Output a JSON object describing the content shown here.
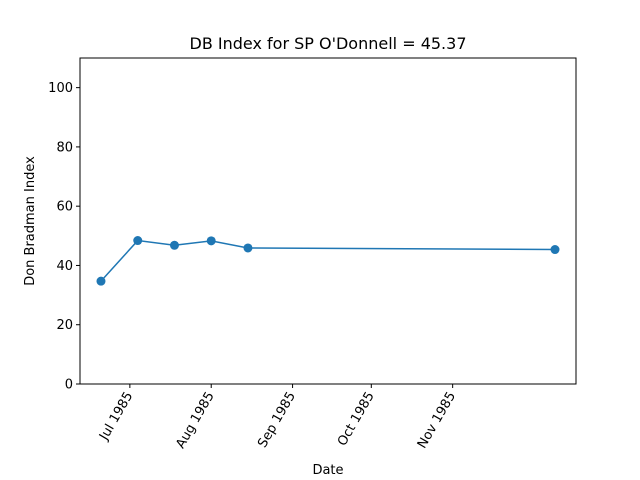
{
  "chart_data": {
    "type": "line",
    "title": "DB Index for SP O'Donnell = 45.37",
    "xlabel": "Date",
    "ylabel": "Don Bradman Index",
    "ylim": [
      0,
      110
    ],
    "xlim": [
      "1985-06-12",
      "1985-12-18"
    ],
    "yticks": [
      0,
      20,
      40,
      60,
      80,
      100
    ],
    "xticks": [
      {
        "date": "1985-07-01",
        "label": "Jul 1985"
      },
      {
        "date": "1985-08-01",
        "label": "Aug 1985"
      },
      {
        "date": "1985-09-01",
        "label": "Sep 1985"
      },
      {
        "date": "1985-10-01",
        "label": "Oct 1985"
      },
      {
        "date": "1985-11-01",
        "label": "Nov 1985"
      }
    ],
    "x_tick_rotation_deg": 60,
    "grid": false,
    "series": [
      {
        "color": "#1f77b4",
        "marker": "circle",
        "points": [
          {
            "x": "1985-06-20",
            "y": 34.7
          },
          {
            "x": "1985-07-04",
            "y": 48.4
          },
          {
            "x": "1985-07-18",
            "y": 46.8
          },
          {
            "x": "1985-08-01",
            "y": 48.3
          },
          {
            "x": "1985-08-15",
            "y": 45.9
          },
          {
            "x": "1985-12-10",
            "y": 45.37
          }
        ]
      }
    ]
  }
}
